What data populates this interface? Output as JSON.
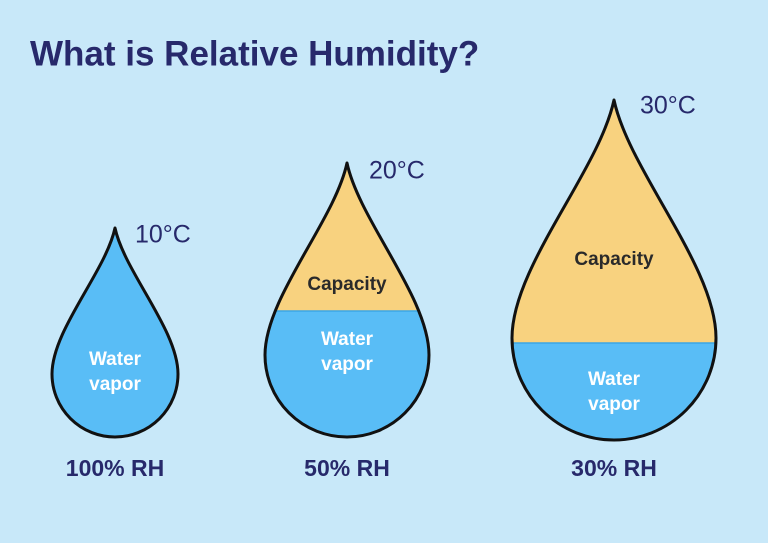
{
  "title": "What is Relative Humidity?",
  "drops": [
    {
      "temperature": "10°C",
      "water_vapor": [
        "Water",
        "vapor"
      ],
      "relative_humidity": "100% RH"
    },
    {
      "temperature": "20°C",
      "capacity": "Capacity",
      "water_vapor": [
        "Water",
        "vapor"
      ],
      "relative_humidity": "50% RH"
    },
    {
      "temperature": "30°C",
      "capacity": "Capacity",
      "water_vapor": [
        "Water",
        "vapor"
      ],
      "relative_humidity": "30% RH"
    }
  ]
}
